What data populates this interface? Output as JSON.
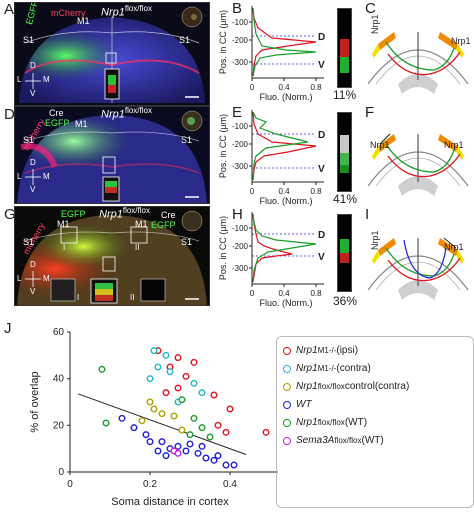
{
  "panels": {
    "A": {
      "letter": "A",
      "title": "Nrp1",
      "sup": "flox/flox",
      "labels": [
        "EGFP",
        "mCherry",
        "M1",
        "S1",
        "S1"
      ]
    },
    "D": {
      "letter": "D",
      "title": "Nrp1",
      "sup": "flox/flox",
      "labels": [
        "Cre",
        "EGFP",
        "mCherry",
        "M1",
        "S1",
        "S1"
      ]
    },
    "G": {
      "letter": "G",
      "title": "Nrp1",
      "sup": "flox/flox",
      "labels": [
        "EGFP",
        "Cre",
        "EGFP",
        "mCherry",
        "M1",
        "M1",
        "S1",
        "S1",
        "I",
        "II",
        "I",
        "II"
      ]
    },
    "B": {
      "letter": "B"
    },
    "E": {
      "letter": "E"
    },
    "H": {
      "letter": "H"
    },
    "C": {
      "letter": "C",
      "labels": [
        "Nrp1",
        "Nrp1"
      ]
    },
    "F": {
      "letter": "F",
      "labels": [
        "Nrp1",
        "Nrp1"
      ]
    },
    "I": {
      "letter": "I",
      "labels": [
        "Nrp1",
        "Nrp1"
      ]
    },
    "J": {
      "letter": "J"
    }
  },
  "axes_compass": {
    "d": "D",
    "v": "V",
    "l": "L",
    "m": "M"
  },
  "profile_plots": {
    "ylabel": "Pos. in CC (μm)",
    "xlabel": "Fluo. (Norm.)",
    "yticks": [
      "-100",
      "-200",
      "-300"
    ],
    "xticks": [
      "0",
      "0.4",
      "0.8"
    ],
    "dorsal": "D",
    "ventral": "V"
  },
  "overlaps": {
    "B": "11%",
    "E": "41%",
    "H": "36%"
  },
  "colors": {
    "green": "#1a9e2a",
    "red": "#e0141e",
    "blue": "#2a2ad8",
    "orange": "#f08a00",
    "yellow": "#f3e000"
  },
  "chart_data": {
    "type": "scatter",
    "xlabel": "Soma distance in cortex",
    "ylabel": "% of overlap",
    "xlim": [
      0,
      0.5
    ],
    "ylim": [
      0,
      60
    ],
    "xticks": [
      0,
      0.2,
      0.4
    ],
    "yticks": [
      0,
      20,
      40,
      60
    ],
    "trendline": {
      "x": [
        0.02,
        0.44
      ],
      "y": [
        33.5,
        7.5
      ]
    },
    "legend_position": "top-right",
    "series": [
      {
        "name": "Nrp1",
        "sup": "M1-/-",
        "suffix": "(ipsi)",
        "color": "#e0141e",
        "points": [
          [
            0.22,
            52
          ],
          [
            0.27,
            49
          ],
          [
            0.31,
            47
          ],
          [
            0.25,
            45
          ],
          [
            0.29,
            41
          ],
          [
            0.24,
            34
          ],
          [
            0.27,
            36
          ],
          [
            0.36,
            33
          ],
          [
            0.4,
            27
          ],
          [
            0.37,
            20
          ],
          [
            0.39,
            17
          ],
          [
            0.49,
            17
          ]
        ]
      },
      {
        "name": "Nrp1",
        "sup": "M1-/-",
        "suffix": "(contra)",
        "color": "#22b8c8",
        "points": [
          [
            0.21,
            52
          ],
          [
            0.24,
            50
          ],
          [
            0.22,
            45
          ],
          [
            0.2,
            40
          ],
          [
            0.25,
            43
          ],
          [
            0.27,
            30
          ],
          [
            0.33,
            34
          ],
          [
            0.31,
            38
          ]
        ]
      },
      {
        "name": "Nrp1",
        "sup": "flox/flox",
        "suffix": "control(contra)",
        "color": "#b0a000",
        "points": [
          [
            0.2,
            30
          ],
          [
            0.21,
            27
          ],
          [
            0.23,
            25
          ],
          [
            0.18,
            22
          ],
          [
            0.26,
            24
          ],
          [
            0.28,
            18
          ]
        ]
      },
      {
        "name": "WT",
        "sup": "",
        "suffix": "",
        "color": "#2020d0",
        "points": [
          [
            0.13,
            23
          ],
          [
            0.16,
            19
          ],
          [
            0.19,
            16
          ],
          [
            0.2,
            13
          ],
          [
            0.23,
            13
          ],
          [
            0.25,
            10
          ],
          [
            0.27,
            11
          ],
          [
            0.29,
            9
          ],
          [
            0.32,
            8
          ],
          [
            0.34,
            6
          ],
          [
            0.36,
            5
          ],
          [
            0.37,
            7
          ],
          [
            0.39,
            3
          ],
          [
            0.41,
            3
          ],
          [
            0.3,
            12
          ],
          [
            0.24,
            7
          ],
          [
            0.22,
            9
          ],
          [
            0.33,
            11
          ]
        ]
      },
      {
        "name": "Nrp1",
        "sup": "flox/flox",
        "suffix": "(WT)",
        "color": "#1a9e2a",
        "points": [
          [
            0.08,
            44
          ],
          [
            0.09,
            21
          ],
          [
            0.28,
            31
          ],
          [
            0.31,
            23
          ],
          [
            0.35,
            15
          ],
          [
            0.33,
            19
          ],
          [
            0.3,
            16
          ]
        ]
      },
      {
        "name": "Sema3A",
        "sup": "flox/flox",
        "suffix": "(WT)",
        "color": "#d020d0",
        "points": [
          [
            0.26,
            9
          ],
          [
            0.27,
            8
          ]
        ]
      }
    ]
  }
}
